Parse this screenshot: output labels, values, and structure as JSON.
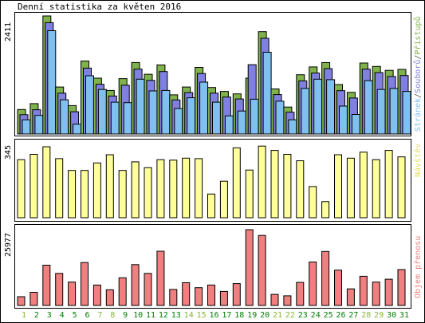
{
  "chart_data": {
    "type": "bar",
    "title": "Denní statistika za květen 2016",
    "categories": [
      "1",
      "2",
      "3",
      "4",
      "5",
      "6",
      "7",
      "8",
      "9",
      "10",
      "11",
      "12",
      "13",
      "14",
      "15",
      "16",
      "17",
      "18",
      "19",
      "20",
      "21",
      "22",
      "23",
      "24",
      "25",
      "26",
      "27",
      "28",
      "29",
      "30",
      "31"
    ],
    "weekend_days": [
      "1",
      "7",
      "8",
      "14",
      "15",
      "21",
      "22",
      "28",
      "29"
    ],
    "panels": [
      {
        "name": "requests",
        "max_label": "2411",
        "ylim": [
          0,
          2411
        ],
        "legend_parts": [
          "Stránek",
          "/",
          "Souborů",
          "/",
          "Přístupů"
        ],
        "series": [
          {
            "name": "Přístupů",
            "color": "#7fb24a",
            "values": [
              500,
              620,
              2411,
              960,
              580,
              1490,
              1140,
              890,
              1130,
              1460,
              1220,
              1410,
              800,
              960,
              1360,
              950,
              870,
              820,
              1140,
              2090,
              920,
              550,
              1210,
              1370,
              1460,
              1010,
              850,
              1450,
              1380,
              1300,
              1320
            ]
          },
          {
            "name": "Souborů",
            "color": "#8080e0",
            "values": [
              460,
              560,
              2340,
              900,
              520,
              1410,
              1080,
              840,
              1060,
              1390,
              1160,
              1340,
              760,
              910,
              1300,
              900,
              820,
              780,
              1480,
              2020,
              870,
              510,
              1150,
              1310,
              1400,
              950,
              800,
              1390,
              1320,
              1240,
              1260
            ]
          },
          {
            "name": "Stránek",
            "color": "#80c0f0",
            "values": [
              420,
              510,
              2240,
              830,
              330,
              1320,
              1040,
              780,
              770,
              1250,
              1010,
              1020,
              650,
              870,
              1190,
              780,
              500,
              600,
              840,
              1800,
              800,
              420,
              1060,
              1250,
              1240,
              700,
              530,
              1220,
              1040,
              1060,
              1000
            ]
          }
        ]
      },
      {
        "name": "visits",
        "max_label": "345",
        "ylim": [
          0,
          345
        ],
        "legend_parts": [
          "Návštěv"
        ],
        "series": [
          {
            "name": "Návštěv",
            "color": "#ffff99",
            "values": [
              270,
              295,
              330,
              275,
              220,
              220,
              255,
              293,
              220,
              260,
              233,
              270,
              268,
              277,
              275,
              110,
              170,
              325,
              222,
              333,
              313,
              295,
              265,
              145,
              75,
              293,
              277,
              305,
              270,
              313,
              283
            ]
          }
        ]
      },
      {
        "name": "traffic",
        "max_label": "25977",
        "ylim": [
          0,
          25977
        ],
        "legend_parts": [
          "Objem přenosu"
        ],
        "series": [
          {
            "name": "Objem přenosu",
            "color": "#f08080",
            "values": [
              3000,
              4500,
              13800,
              11000,
              8000,
              14700,
              7000,
              5400,
              9500,
              14000,
              11000,
              18600,
              5500,
              7800,
              6100,
              7000,
              4800,
              7500,
              25977,
              24000,
              3800,
              3300,
              7900,
              14900,
              18500,
              12100,
              5700,
              10000,
              8000,
              9000,
              12300
            ]
          }
        ]
      }
    ],
    "colors": {
      "weekday_label": "#008000",
      "weekend_label": "#88b830",
      "legend_stranek": "#80c0f0",
      "legend_slash": "#505050",
      "legend_souboru": "#8080e0",
      "legend_pristupu": "#7fb24a",
      "legend_navstev": "#e0e060",
      "legend_objem": "#f08080"
    }
  }
}
